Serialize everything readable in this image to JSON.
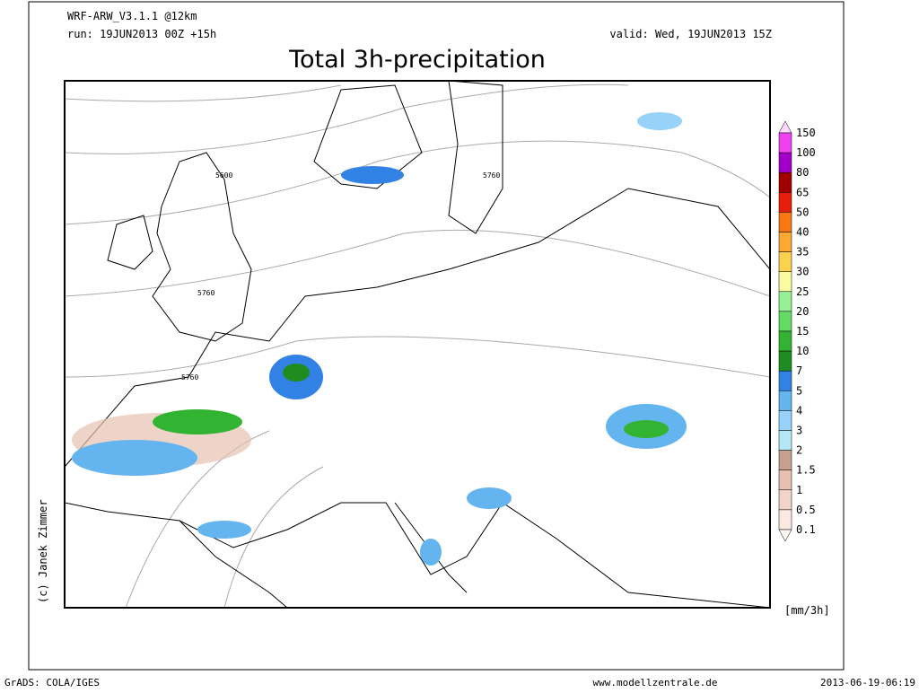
{
  "header": {
    "model": "WRF-ARW_V3.1.1 @12km",
    "run": "run: 19JUN2013 00Z +15h",
    "valid": "valid: Wed, 19JUN2013 15Z",
    "title": "Total 3h-precipitation"
  },
  "map": {
    "contour_labels": [
      "5600",
      "5760",
      "5760",
      "5760"
    ],
    "copyright": "(c) Janek Zimmer"
  },
  "colorbar": {
    "labels": [
      "150",
      "100",
      "80",
      "65",
      "50",
      "40",
      "35",
      "30",
      "25",
      "20",
      "15",
      "10",
      "7",
      "5",
      "4",
      "3",
      "2",
      "1.5",
      "1",
      "0.5",
      "0.1"
    ],
    "colors": [
      "#fcd8fc",
      "#f040f0",
      "#a000c8",
      "#a00000",
      "#e61e0a",
      "#fa7814",
      "#faaa32",
      "#fad250",
      "#fafaa0",
      "#96f096",
      "#64dc64",
      "#32b432",
      "#1e8c1e",
      "#3282e6",
      "#64b4f0",
      "#96d2fa",
      "#b4e8f4",
      "#c8a090",
      "#e6c0b0",
      "#f2d4c8",
      "#fbe8e0",
      "#fff8f4"
    ],
    "unit": "[mm/3h]"
  },
  "footer": {
    "left": "GrADS: COLA/IGES",
    "center": "www.modellzentrale.de",
    "right": "2013-06-19-06:19"
  }
}
